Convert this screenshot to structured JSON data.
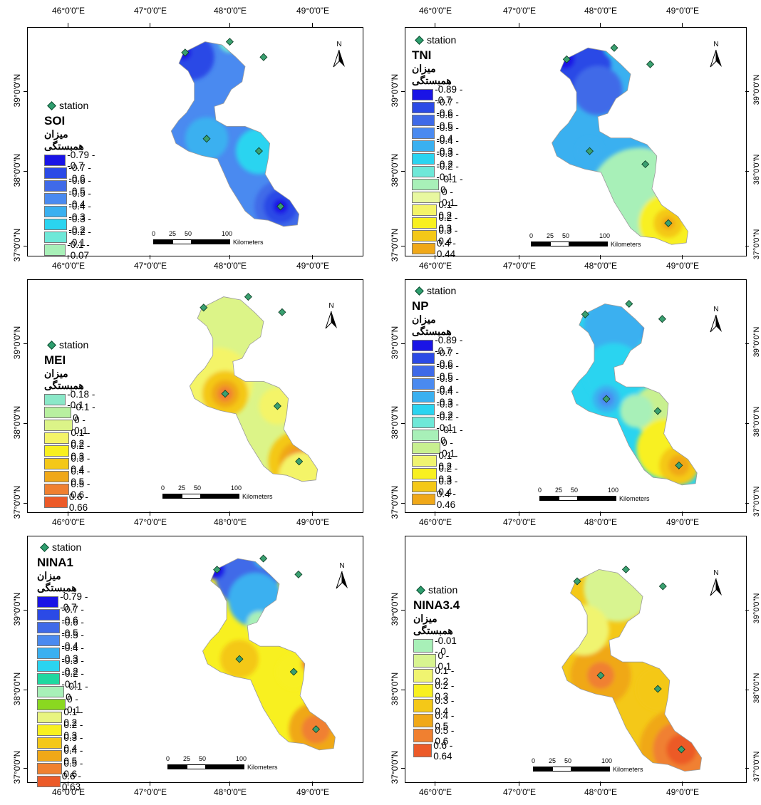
{
  "lon_ticks": [
    "46°0'0\"E",
    "47°0'0\"E",
    "48°0'0\"E",
    "49°0'0\"E"
  ],
  "lat_ticks": [
    "39°0'0\"N",
    "38°0'0\"N",
    "37°0'0\"N"
  ],
  "station_label": "station",
  "legend_title_fa": "میزان همبستگی",
  "scale": {
    "n0": "0",
    "n1": "25",
    "n2": "50",
    "n3": "100",
    "unit": "Kilometers"
  },
  "north": "N",
  "panels": [
    {
      "index": "SOI",
      "classes": [
        {
          "label": "-0.79 - -0.7",
          "color": "#1a14e6"
        },
        {
          "label": "-0.7 - -0.6",
          "color": "#2b4ae6"
        },
        {
          "label": "-0.6 - -0.5",
          "color": "#3f6ae8"
        },
        {
          "label": "-0.5 - -0.4",
          "color": "#4a8af0"
        },
        {
          "label": "-0.4 - -0.3",
          "color": "#3ab0f0"
        },
        {
          "label": "-0.3 - -0.2",
          "color": "#2ad4f0"
        },
        {
          "label": "-0.2 - -0.1",
          "color": "#6ee8d8"
        },
        {
          "label": "-0.1 - -0.07",
          "color": "#a8f0b8"
        }
      ]
    },
    {
      "index": "TNI",
      "classes": [
        {
          "label": "-0.89 - -0.7",
          "color": "#1a14e6"
        },
        {
          "label": "-0.7 - -0.6",
          "color": "#2b4ae6"
        },
        {
          "label": "-0.6 - -0.5",
          "color": "#3f6ae8"
        },
        {
          "label": "-0.5 - -0.4",
          "color": "#4a8af0"
        },
        {
          "label": "-0.4 - -0.3",
          "color": "#3ab0f0"
        },
        {
          "label": "-0.3 - -0.2",
          "color": "#2ad4f0"
        },
        {
          "label": "-0.2 - -0.1",
          "color": "#6ee8d8"
        },
        {
          "label": "-0.1 - 0",
          "color": "#a8f0b8"
        },
        {
          "label": "0 - 0.1",
          "color": "#e8f8a0"
        },
        {
          "label": "0.1 - 0.2",
          "color": "#f4f468"
        },
        {
          "label": "0.2 - 0.3",
          "color": "#f8f020"
        },
        {
          "label": "0.3 - 0.4",
          "color": "#f4c818"
        },
        {
          "label": "0.4 - 0.44",
          "color": "#f0a818"
        }
      ]
    },
    {
      "index": "MEI",
      "classes": [
        {
          "label": "-0.18 - -0.1",
          "color": "#8ae8c8"
        },
        {
          "label": "-0.1 - 0",
          "color": "#b8f0a0"
        },
        {
          "label": "0 - 0.1",
          "color": "#dcf488"
        },
        {
          "label": "0.1 - 0.2",
          "color": "#f4f468"
        },
        {
          "label": "0.2 - 0.3",
          "color": "#f8f020"
        },
        {
          "label": "0.3 - 0.4",
          "color": "#f4c818"
        },
        {
          "label": "0.4 - 0.5",
          "color": "#f0a818"
        },
        {
          "label": "0.5 - 0.6",
          "color": "#f08030"
        },
        {
          "label": "0.6 - 0.66",
          "color": "#ec5a28"
        }
      ]
    },
    {
      "index": "NP",
      "classes": [
        {
          "label": "-0.89 - -0.7",
          "color": "#1a14e6"
        },
        {
          "label": "-0.7 - -0.6",
          "color": "#2b4ae6"
        },
        {
          "label": "-0.6 - -0.5",
          "color": "#3f6ae8"
        },
        {
          "label": "-0.5 - -0.4",
          "color": "#4a8af0"
        },
        {
          "label": "-0.4 - -0.3",
          "color": "#3ab0f0"
        },
        {
          "label": "-0.3 - -0.2",
          "color": "#2ad4f0"
        },
        {
          "label": "-0.2 - -0.1",
          "color": "#6ee8d8"
        },
        {
          "label": "-0.1 - 0",
          "color": "#a8f0b8"
        },
        {
          "label": "0 - 0.1",
          "color": "#c8f090"
        },
        {
          "label": "0.1 - 0.2",
          "color": "#f0f470"
        },
        {
          "label": "0.2 - 0.3",
          "color": "#f8f020"
        },
        {
          "label": "0.3 - 0.4",
          "color": "#f4c818"
        },
        {
          "label": "0.4 - 0.46",
          "color": "#f0a818"
        }
      ]
    },
    {
      "index": "NINA1",
      "classes": [
        {
          "label": "-0.79 - -0.7",
          "color": "#1a14e6"
        },
        {
          "label": "-0.7 - -0.6",
          "color": "#2b4ae6"
        },
        {
          "label": "-0.6 - -0.5",
          "color": "#3f6ae8"
        },
        {
          "label": "-0.5 - -0.4",
          "color": "#4a8af0"
        },
        {
          "label": "-0.4 - -0.3",
          "color": "#3ab0f0"
        },
        {
          "label": "-0.3 - -0.2",
          "color": "#2ad4f0"
        },
        {
          "label": "-0.2 - -0.1",
          "color": "#20d8a0"
        },
        {
          "label": "-0.1 - 0",
          "color": "#a8f0b8"
        },
        {
          "label": "0 - 0.1",
          "color": "#8ad820"
        },
        {
          "label": "0.1 - 0.2",
          "color": "#e8f480"
        },
        {
          "label": "0.2 - 0.3",
          "color": "#f8f020"
        },
        {
          "label": "0.3 - 0.4",
          "color": "#f4c818"
        },
        {
          "label": "0.4 - 0.5",
          "color": "#f0a818"
        },
        {
          "label": "0.5 - 0.6",
          "color": "#f08030"
        },
        {
          "label": "0.6 - 0.63",
          "color": "#ec5a28"
        }
      ]
    },
    {
      "index": "NINA3.4",
      "classes": [
        {
          "label": "-0.01 - 0",
          "color": "#a8f0b8"
        },
        {
          "label": "0 - 0.1",
          "color": "#d8f490"
        },
        {
          "label": "0.1 - 0.2",
          "color": "#f0f470"
        },
        {
          "label": "0.2 - 0.3",
          "color": "#f8f020"
        },
        {
          "label": "0.3 - 0.4",
          "color": "#f4c818"
        },
        {
          "label": "0.4 - 0.5",
          "color": "#f0a818"
        },
        {
          "label": "0.5 - 0.6",
          "color": "#f08030"
        },
        {
          "label": "0.6 - 0.64",
          "color": "#ec5a28"
        }
      ]
    }
  ]
}
